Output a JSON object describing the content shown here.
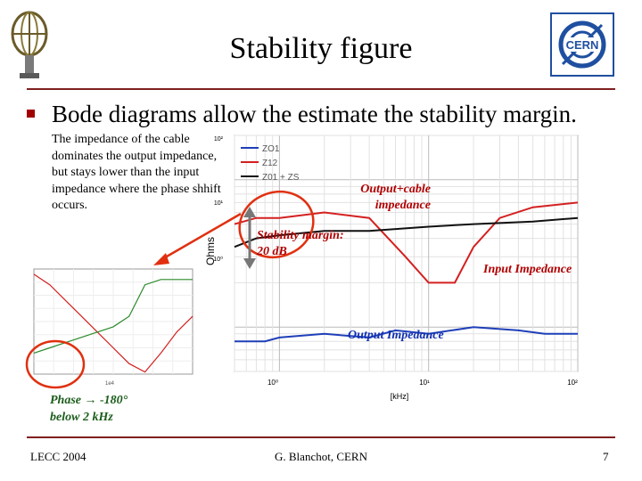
{
  "slide": {
    "title": "Stability figure",
    "bullet": "Bode diagrams allow the estimate the stability margin.",
    "description": "The impedance of the cable dominates the output impedance, but stays lower than the input impedance where the phase shhift occurs."
  },
  "annotations": {
    "output_cable": "Output+cable impedance",
    "stability_margin": "Stability margin: 20 dB",
    "input_impedance": "Input Impedance",
    "output_impedance": "Output Impedance",
    "phase_note": "Phase → -180° below 2 kHz"
  },
  "footer": {
    "left": "LECC 2004",
    "center": "G. Blanchot, CERN",
    "page": "7"
  },
  "chart_data": [
    {
      "type": "line",
      "ylabel": "Ohms",
      "xlabel": "[kHz]",
      "x_ticks": [
        "10⁰",
        "10¹",
        "10²"
      ],
      "y_ticks": [
        "10⁰",
        "10¹",
        "10²"
      ],
      "legend": [
        "ZO1",
        "Z12",
        "Z01 + ZS"
      ],
      "series_colors": [
        "#1f3fb8",
        "#d42020",
        "#111111"
      ],
      "x_scale": "log",
      "y_scale": "log",
      "grid": true,
      "legend_position": "top-left",
      "xlim": [
        0.5,
        100
      ],
      "ylim": [
        0.05,
        2
      ],
      "series": [
        {
          "name": "ZO1",
          "x": [
            0.5,
            0.8,
            1,
            2,
            4,
            6,
            10,
            20,
            40,
            60,
            100
          ],
          "y": [
            0.08,
            0.08,
            0.085,
            0.09,
            0.085,
            0.095,
            0.09,
            0.1,
            0.095,
            0.09,
            0.09
          ]
        },
        {
          "name": "Z12",
          "x": [
            0.5,
            0.7,
            1,
            2,
            4,
            7,
            10,
            15,
            20,
            30,
            50,
            100
          ],
          "y": [
            0.5,
            0.55,
            0.55,
            0.6,
            0.55,
            0.3,
            0.2,
            0.2,
            0.35,
            0.55,
            0.65,
            0.7
          ]
        },
        {
          "name": "Z01 + ZS",
          "x": [
            0.5,
            0.7,
            1,
            2,
            4,
            10,
            20,
            50,
            100
          ],
          "y": [
            0.35,
            0.4,
            0.42,
            0.45,
            0.45,
            0.48,
            0.5,
            0.52,
            0.55
          ]
        }
      ]
    },
    {
      "type": "line",
      "x_tick": "1e4",
      "series_colors": [
        "#d42020",
        "#2a8a2a"
      ],
      "series": [
        {
          "name": "",
          "x": [
            0,
            0.2,
            0.4,
            0.6,
            0.8,
            1,
            1.2,
            1.4,
            1.6,
            1.8,
            2
          ],
          "y": [
            0.95,
            0.85,
            0.7,
            0.55,
            0.4,
            0.25,
            0.1,
            0.02,
            0.2,
            0.4,
            0.55
          ]
        },
        {
          "name": "",
          "x": [
            0,
            0.2,
            0.4,
            0.6,
            0.8,
            1,
            1.2,
            1.4,
            1.6,
            1.8,
            2
          ],
          "y": [
            0.2,
            0.25,
            0.3,
            0.35,
            0.4,
            0.45,
            0.55,
            0.85,
            0.9,
            0.9,
            0.9
          ]
        }
      ]
    }
  ]
}
